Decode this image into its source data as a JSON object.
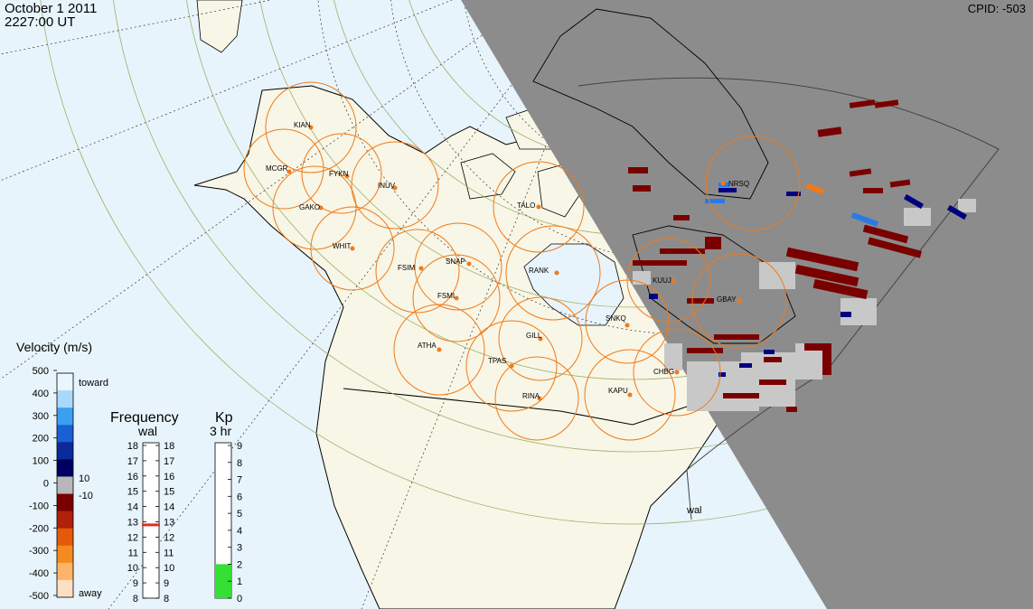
{
  "header": {
    "date": "October  1 2011",
    "time": "2227:00 UT",
    "cpid": "CPID:  -503"
  },
  "radar_label": "wal",
  "stations": [
    {
      "name": "KIAN"
    },
    {
      "name": "MCGR"
    },
    {
      "name": "FYKN"
    },
    {
      "name": "INUV"
    },
    {
      "name": "GAKO"
    },
    {
      "name": "TALO"
    },
    {
      "name": "WHIT"
    },
    {
      "name": "FSIM"
    },
    {
      "name": "SNAP"
    },
    {
      "name": "FSMI"
    },
    {
      "name": "RANK"
    },
    {
      "name": "NRSQ"
    },
    {
      "name": "KUUJ"
    },
    {
      "name": "GBAY"
    },
    {
      "name": "SNKQ"
    },
    {
      "name": "ATHA"
    },
    {
      "name": "GILL"
    },
    {
      "name": "TPAS"
    },
    {
      "name": "CHBG"
    },
    {
      "name": "KAPU"
    },
    {
      "name": "RINA"
    }
  ],
  "velocity_scale": {
    "title": "Velocity (m/s)",
    "ticks": [
      "500",
      "400",
      "300",
      "200",
      "100",
      "0",
      "-100",
      "-200",
      "-300",
      "-400",
      "-500"
    ],
    "toward": "toward",
    "away": "away",
    "threshold_pos": "10",
    "threshold_neg": "-10",
    "colors": [
      "#fde0c4",
      "#fbb46a",
      "#f58a1e",
      "#e35a0a",
      "#b0200a",
      "#7a0000",
      "#b8b8b8",
      "#000060",
      "#0a2a9a",
      "#1b5fd6",
      "#3aa0f0",
      "#a9d8fb",
      "#e8f6ff"
    ]
  },
  "frequency_scale": {
    "title": "Frequency",
    "subtitle": "wal",
    "left_ticks": [
      "18",
      "17",
      "16",
      "15",
      "14",
      "13",
      "12",
      "11",
      "10",
      "9",
      "8"
    ],
    "right_ticks": [
      "18",
      "17",
      "16",
      "15",
      "14",
      "13",
      "12",
      "11",
      "10",
      "9",
      "8"
    ],
    "current_value_mhz": 12.8
  },
  "kp_scale": {
    "title": "Kp",
    "subtitle": "3 hr",
    "ticks": [
      "9",
      "8",
      "7",
      "6",
      "5",
      "4",
      "3",
      "2",
      "1",
      "0"
    ],
    "current_value": 2
  },
  "colors": {
    "ocean": "#e8f4fb",
    "land": "#f8f6e6",
    "fov_shade": "#8c8c8c",
    "station_circle": "#f07a1a",
    "station_dot": "#f07a1a",
    "grid": "#9cb06a",
    "kp_fill": "#33e033",
    "freq_marker": "#e0301a"
  }
}
